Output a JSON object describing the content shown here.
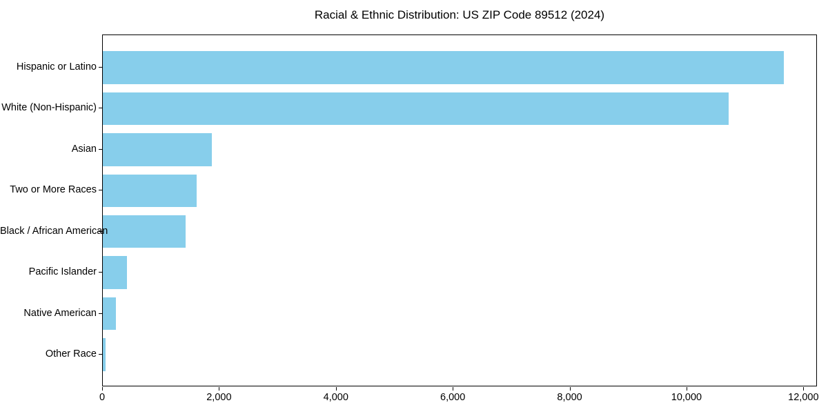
{
  "chart_data": {
    "type": "bar",
    "orientation": "horizontal",
    "title": "Racial & Ethnic Distribution: US ZIP Code 89512 (2024)",
    "categories": [
      "Hispanic or Latino",
      "White (Non-Hispanic)",
      "Asian",
      "Two or More Races",
      "Black / African American",
      "Pacific Islander",
      "Native American",
      "Other Race"
    ],
    "values": [
      11650,
      10710,
      1870,
      1610,
      1420,
      415,
      220,
      50
    ],
    "xlabel": "",
    "ylabel": "",
    "xlim": [
      0,
      12232
    ],
    "x_ticks": [
      0,
      2000,
      4000,
      6000,
      8000,
      10000,
      12000
    ],
    "x_tick_labels": [
      "0",
      "2,000",
      "4,000",
      "6,000",
      "8,000",
      "10,000",
      "12,000"
    ],
    "bar_color": "#87CEEB",
    "grid": false,
    "legend": null,
    "frame_color": "#000000",
    "background_color": "#ffffff"
  }
}
